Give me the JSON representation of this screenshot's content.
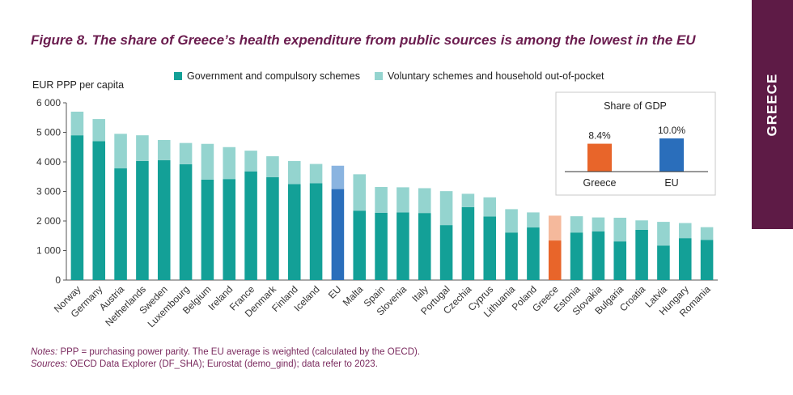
{
  "figure": {
    "title": "Figure 8. The share of Greece’s health expenditure from public sources is among the lowest in the EU",
    "notes_label": "Notes:",
    "notes_text": " PPP = purchasing power parity. The EU average is weighted (calculated by the OECD).",
    "sources_label": "Sources:",
    "sources_text": " OECD Data Explorer (DF_SHA); Eurostat (demo_gind); data refer to 2023."
  },
  "side_tab": {
    "label": "GREECE",
    "color": "#5e1b46"
  },
  "colors": {
    "government": "#13a097",
    "voluntary": "#94d4cf",
    "eu_government": "#2a6ebb",
    "eu_voluntary": "#8ab4e0",
    "greece_government": "#e8652a",
    "greece_voluntary": "#f5b99c",
    "inset_greece": "#e8652a",
    "inset_eu": "#2a6ebb"
  },
  "chart_data": [
    {
      "type": "bar",
      "stacked": true,
      "ylabel": "EUR PPP per capita",
      "ylim": [
        0,
        6000
      ],
      "yticks": [
        0,
        1000,
        2000,
        3000,
        4000,
        5000,
        6000
      ],
      "ytick_labels": [
        "0",
        "1 000",
        "2 000",
        "3 000",
        "4 000",
        "5 000",
        "6 000"
      ],
      "grid": false,
      "legend_position": "top",
      "categories": [
        "Norway",
        "Germany",
        "Austria",
        "Netherlands",
        "Sweden",
        "Luxembourg",
        "Belgium",
        "Ireland",
        "France",
        "Denmark",
        "Finland",
        "Iceland",
        "EU",
        "Malta",
        "Spain",
        "Slovenia",
        "Italy",
        "Portugal",
        "Czechia",
        "Cyprus",
        "Lithuania",
        "Poland",
        "Greece",
        "Estonia",
        "Slovakia",
        "Bulgaria",
        "Croatia",
        "Latvia",
        "Hungary",
        "Romania"
      ],
      "series": [
        {
          "name": "Government and compulsory schemes",
          "values": [
            4900,
            4700,
            3780,
            4030,
            4060,
            3920,
            3400,
            3420,
            3680,
            3480,
            3250,
            3280,
            3080,
            2350,
            2280,
            2290,
            2270,
            1860,
            2470,
            2150,
            1610,
            1780,
            1340,
            1610,
            1650,
            1310,
            1700,
            1170,
            1420,
            1360
          ]
        },
        {
          "name": "Voluntary schemes and household out-of-pocket",
          "values": [
            800,
            750,
            1170,
            870,
            680,
            720,
            1210,
            1080,
            700,
            710,
            780,
            650,
            790,
            1230,
            870,
            850,
            840,
            1150,
            450,
            650,
            790,
            510,
            840,
            550,
            470,
            800,
            320,
            800,
            510,
            430
          ]
        }
      ]
    },
    {
      "type": "bar",
      "title": "Share of GDP",
      "categories": [
        "Greece",
        "EU"
      ],
      "values": [
        8.4,
        10.0
      ],
      "data_labels": [
        "8.4%",
        "10.0%"
      ]
    }
  ]
}
